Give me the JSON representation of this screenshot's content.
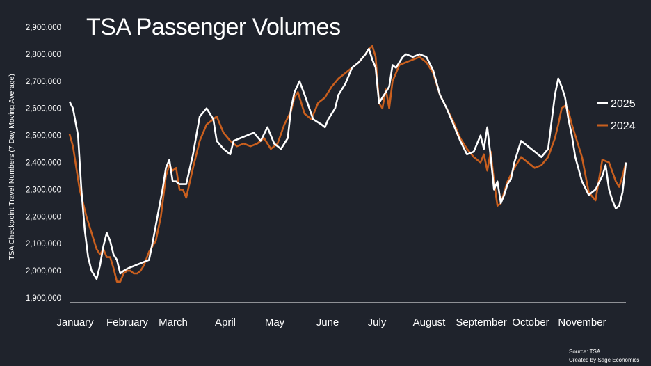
{
  "chart_data": {
    "type": "line",
    "title": "TSA Passenger Volumes",
    "ylabel": "TSA Checkpoint Travel Numbers (7 Day Moving Average)",
    "xlabel": "",
    "ylim": [
      1900000,
      2900000
    ],
    "yticks": [
      "1,900,000",
      "2,000,000",
      "2,100,000",
      "2,200,000",
      "2,300,000",
      "2,400,000",
      "2,500,000",
      "2,600,000",
      "2,700,000",
      "2,800,000",
      "2,900,000"
    ],
    "ytick_values": [
      1900000,
      2000000,
      2100000,
      2200000,
      2300000,
      2400000,
      2500000,
      2600000,
      2700000,
      2800000,
      2900000
    ],
    "xlim": [
      1,
      330
    ],
    "months": [
      {
        "label": "January",
        "day": 1
      },
      {
        "label": "February",
        "day": 32
      },
      {
        "label": "March",
        "day": 60
      },
      {
        "label": "April",
        "day": 91
      },
      {
        "label": "May",
        "day": 121
      },
      {
        "label": "June",
        "day": 152
      },
      {
        "label": "July",
        "day": 182
      },
      {
        "label": "August",
        "day": 213
      },
      {
        "label": "September",
        "day": 244
      },
      {
        "label": "October",
        "day": 274
      },
      {
        "label": "November",
        "day": 305
      }
    ],
    "series": [
      {
        "name": "2025",
        "color": "#ffffff",
        "x": [
          1,
          3,
          6,
          8,
          10,
          12,
          14,
          17,
          19,
          21,
          23,
          25,
          27,
          29,
          31,
          33,
          36,
          40,
          44,
          48,
          50,
          53,
          56,
          58,
          60,
          62,
          64,
          66,
          70,
          74,
          78,
          82,
          86,
          88,
          92,
          96,
          98,
          102,
          106,
          110,
          114,
          118,
          122,
          126,
          130,
          132,
          134,
          137,
          140,
          145,
          150,
          152,
          154,
          156,
          158,
          160,
          164,
          168,
          172,
          176,
          178,
          180,
          182,
          184,
          186,
          188,
          190,
          192,
          194,
          196,
          198,
          200,
          204,
          208,
          212,
          216,
          220,
          224,
          228,
          232,
          236,
          240,
          244,
          246,
          248,
          250,
          252,
          254,
          256,
          258,
          260,
          262,
          264,
          268,
          272,
          276,
          280,
          284,
          288,
          290,
          292,
          294,
          296,
          298,
          300,
          304,
          308,
          312,
          316,
          318,
          320,
          322,
          324,
          326,
          328,
          330
        ],
        "values": [
          2625000,
          2600000,
          2500000,
          2300000,
          2150000,
          2050000,
          2000000,
          1970000,
          2020000,
          2090000,
          2140000,
          2110000,
          2060000,
          2040000,
          1990000,
          2000000,
          2010000,
          2020000,
          2030000,
          2040000,
          2100000,
          2200000,
          2300000,
          2380000,
          2410000,
          2330000,
          2330000,
          2320000,
          2320000,
          2430000,
          2570000,
          2600000,
          2560000,
          2480000,
          2450000,
          2430000,
          2480000,
          2490000,
          2500000,
          2510000,
          2480000,
          2530000,
          2470000,
          2450000,
          2490000,
          2600000,
          2660000,
          2700000,
          2650000,
          2560000,
          2540000,
          2530000,
          2560000,
          2580000,
          2600000,
          2650000,
          2690000,
          2750000,
          2770000,
          2800000,
          2820000,
          2780000,
          2750000,
          2620000,
          2640000,
          2660000,
          2680000,
          2760000,
          2750000,
          2770000,
          2790000,
          2800000,
          2790000,
          2800000,
          2790000,
          2740000,
          2650000,
          2600000,
          2540000,
          2480000,
          2430000,
          2440000,
          2500000,
          2450000,
          2530000,
          2420000,
          2300000,
          2330000,
          2250000,
          2280000,
          2320000,
          2340000,
          2400000,
          2480000,
          2460000,
          2440000,
          2420000,
          2450000,
          2650000,
          2710000,
          2680000,
          2640000,
          2560000,
          2500000,
          2420000,
          2330000,
          2280000,
          2300000,
          2350000,
          2390000,
          2300000,
          2260000,
          2230000,
          2240000,
          2290000,
          2400000
        ]
      },
      {
        "name": "2024",
        "color": "#c95f1e",
        "x": [
          1,
          3,
          5,
          7,
          9,
          11,
          13,
          15,
          17,
          19,
          21,
          23,
          25,
          27,
          29,
          31,
          33,
          35,
          37,
          39,
          41,
          43,
          45,
          48,
          52,
          55,
          58,
          60,
          62,
          64,
          66,
          68,
          70,
          74,
          78,
          82,
          86,
          88,
          92,
          96,
          100,
          104,
          108,
          112,
          116,
          120,
          124,
          128,
          132,
          134,
          136,
          138,
          140,
          144,
          148,
          152,
          156,
          160,
          164,
          168,
          172,
          176,
          178,
          180,
          182,
          184,
          186,
          188,
          190,
          192,
          196,
          200,
          204,
          208,
          212,
          216,
          220,
          224,
          228,
          232,
          236,
          240,
          244,
          246,
          248,
          250,
          252,
          254,
          256,
          258,
          260,
          264,
          268,
          272,
          276,
          280,
          284,
          288,
          290,
          292,
          294,
          296,
          298,
          300,
          304,
          308,
          312,
          316,
          320,
          324,
          326,
          328,
          330
        ],
        "values": [
          2505000,
          2460000,
          2380000,
          2300000,
          2250000,
          2200000,
          2160000,
          2120000,
          2080000,
          2060000,
          2080000,
          2050000,
          2050000,
          2010000,
          1960000,
          1960000,
          1990000,
          2000000,
          2000000,
          1990000,
          1990000,
          2000000,
          2020000,
          2070000,
          2110000,
          2200000,
          2350000,
          2390000,
          2370000,
          2380000,
          2300000,
          2300000,
          2270000,
          2380000,
          2480000,
          2540000,
          2560000,
          2570000,
          2510000,
          2480000,
          2460000,
          2470000,
          2460000,
          2470000,
          2490000,
          2450000,
          2470000,
          2540000,
          2590000,
          2640000,
          2660000,
          2620000,
          2580000,
          2560000,
          2620000,
          2640000,
          2680000,
          2710000,
          2730000,
          2750000,
          2770000,
          2800000,
          2820000,
          2830000,
          2790000,
          2620000,
          2600000,
          2670000,
          2600000,
          2700000,
          2760000,
          2770000,
          2780000,
          2790000,
          2770000,
          2730000,
          2650000,
          2600000,
          2550000,
          2490000,
          2450000,
          2420000,
          2400000,
          2430000,
          2370000,
          2440000,
          2330000,
          2240000,
          2250000,
          2290000,
          2330000,
          2380000,
          2420000,
          2400000,
          2380000,
          2390000,
          2420000,
          2490000,
          2540000,
          2600000,
          2610000,
          2590000,
          2540000,
          2500000,
          2420000,
          2290000,
          2260000,
          2410000,
          2400000,
          2330000,
          2310000,
          2350000,
          2400000
        ]
      }
    ],
    "legend": [
      {
        "name": "2025",
        "color": "#ffffff"
      },
      {
        "name": "2024",
        "color": "#c95f1e"
      }
    ],
    "legend_position": "right",
    "source": "Source: TSA",
    "credit": "Created by Sage Economics"
  }
}
